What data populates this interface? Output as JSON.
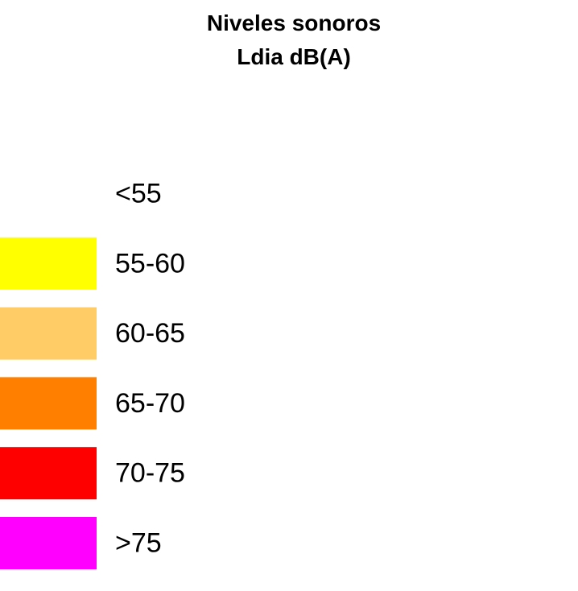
{
  "legend": {
    "title": [
      "Niveles sonoros",
      "Ldia dB(A)"
    ],
    "items": [
      {
        "label": "<55",
        "color": "#ffffff"
      },
      {
        "label": "55-60",
        "color": "#ffff00"
      },
      {
        "label": "60-65",
        "color": "#ffcc66"
      },
      {
        "label": "65-70",
        "color": "#ff8000"
      },
      {
        "label": "70-75",
        "color": "#ff0000"
      },
      {
        "label": ">75",
        "color": "#ff00ff"
      }
    ]
  }
}
